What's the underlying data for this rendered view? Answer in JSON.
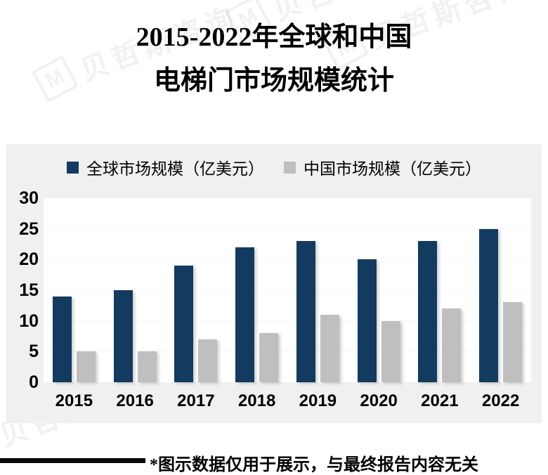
{
  "title": {
    "line1": "2015-2022年全球和中国",
    "line2": "电梯门市场规模统计"
  },
  "watermark": {
    "text": "贝哲斯咨询",
    "logo_letter": "M"
  },
  "legend": {
    "items": [
      {
        "label": "全球市场规模（亿美元）",
        "color": "#123b5f"
      },
      {
        "label": "中国市场规模（亿美元）",
        "color": "#bfbfbf"
      }
    ]
  },
  "footer": {
    "note": "*图示数据仅用于展示，与最终报告内容无关"
  },
  "colors": {
    "global_series": "#123b5f",
    "china_series": "#bfbfbf",
    "panel_background": "#f0f0f0",
    "plot_background": "#ffffff"
  },
  "chart_data": {
    "type": "bar",
    "title": "2015-2022年全球和中国电梯门市场规模统计",
    "categories": [
      "2015",
      "2016",
      "2017",
      "2018",
      "2019",
      "2020",
      "2021",
      "2022"
    ],
    "series": [
      {
        "name": "全球市场规模（亿美元）",
        "key": "global",
        "color": "#123b5f",
        "values": [
          14,
          15,
          19,
          22,
          23,
          20,
          23,
          25
        ]
      },
      {
        "name": "中国市场规模（亿美元）",
        "key": "china",
        "color": "#bfbfbf",
        "values": [
          5,
          5,
          7,
          8,
          11,
          10,
          12,
          13
        ]
      }
    ],
    "xlabel": "",
    "ylabel": "",
    "ylim": [
      0,
      30
    ],
    "yticks": [
      0,
      5,
      10,
      15,
      20,
      25,
      30
    ],
    "grid": false,
    "legend_position": "top"
  }
}
